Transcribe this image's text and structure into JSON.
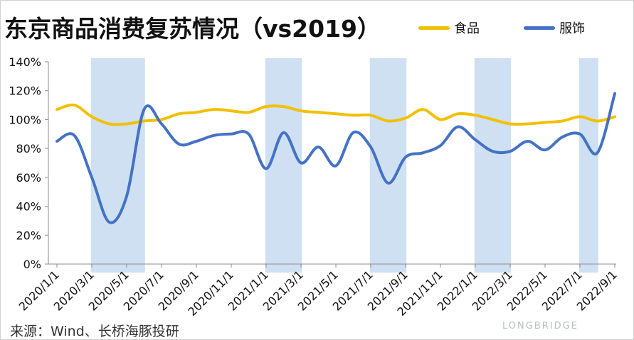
{
  "title": "东京商品消费复苏情况（vs2019）",
  "source": "来源：Wind、长桥海豚投研",
  "watermark": "LONGBRIDGE",
  "chart_data": {
    "type": "line",
    "ylim": [
      0,
      140
    ],
    "yticks": [
      "0%",
      "20%",
      "40%",
      "60%",
      "80%",
      "100%",
      "120%",
      "140%"
    ],
    "xticks": [
      "2020/1/1",
      "2020/3/1",
      "2020/5/1",
      "2020/7/1",
      "2020/9/1",
      "2020/11/1",
      "2021/1/1",
      "2021/3/1",
      "2021/5/1",
      "2021/7/1",
      "2021/9/1",
      "2021/11/1",
      "2022/1/1",
      "2022/3/1",
      "2022/5/1",
      "2022/7/1",
      "2022/9/1"
    ],
    "x": [
      "2020-01",
      "2020-02",
      "2020-03",
      "2020-04",
      "2020-05",
      "2020-06",
      "2020-07",
      "2020-08",
      "2020-09",
      "2020-10",
      "2020-11",
      "2020-12",
      "2021-01",
      "2021-02",
      "2021-03",
      "2021-04",
      "2021-05",
      "2021-06",
      "2021-07",
      "2021-08",
      "2021-09",
      "2021-10",
      "2021-11",
      "2021-12",
      "2022-01",
      "2022-02",
      "2022-03",
      "2022-04",
      "2022-05",
      "2022-06",
      "2022-07",
      "2022-08",
      "2022-09"
    ],
    "series": [
      {
        "name": "食品",
        "color": "#f2c000",
        "values": [
          107,
          110,
          102,
          97,
          97,
          99,
          100,
          104,
          105,
          107,
          106,
          105,
          109,
          109,
          106,
          105,
          104,
          103,
          103,
          99,
          101,
          107,
          100,
          104,
          103,
          100,
          97,
          97,
          98,
          99,
          102,
          99,
          102
        ]
      },
      {
        "name": "服饰",
        "color": "#4472c4",
        "values": [
          85,
          89,
          60,
          29,
          47,
          107,
          97,
          83,
          85,
          89,
          90,
          90,
          66,
          91,
          70,
          81,
          68,
          91,
          81,
          56,
          74,
          77,
          82,
          95,
          86,
          78,
          78,
          85,
          79,
          88,
          90,
          77,
          118
        ]
      }
    ],
    "shaded_periods": [
      [
        "2020-03",
        "2020-06"
      ],
      [
        "2021-01",
        "2021-03"
      ],
      [
        "2021-07",
        "2021-09"
      ],
      [
        "2022-01",
        "2022-03"
      ],
      [
        "2022-07",
        "2022-08"
      ]
    ],
    "shade_color": "#cfe0f3",
    "grid": false,
    "legend": "top-right"
  }
}
